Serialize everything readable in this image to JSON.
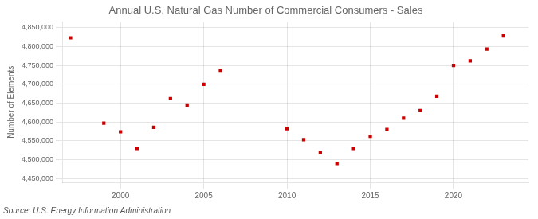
{
  "chart_data": {
    "type": "scatter",
    "title": "Annual U.S. Natural Gas Number of Commercial Consumers - Sales",
    "ylabel": "Number of Elements",
    "source": "Source: U.S. Energy Information Administration",
    "color": "#cc0000",
    "marker": "square",
    "grid": true,
    "x": [
      1997,
      1999,
      2000,
      2001,
      2002,
      2003,
      2004,
      2005,
      2006,
      2010,
      2011,
      2012,
      2013,
      2014,
      2015,
      2016,
      2017,
      2018,
      2019,
      2020,
      2021,
      2022,
      2023
    ],
    "values": [
      4823000,
      4597000,
      4574000,
      4530000,
      4586000,
      4662000,
      4645000,
      4700000,
      4735000,
      4582000,
      4553000,
      4519000,
      4490000,
      4530000,
      4562000,
      4580000,
      4610000,
      4630000,
      4668000,
      4750000,
      4762000,
      4793000,
      4828000
    ],
    "xlim": [
      1996.5,
      2024.5
    ],
    "xticks": [
      2000,
      2005,
      2010,
      2015,
      2020
    ],
    "ylim": [
      4440000,
      4865000
    ],
    "yticks": [
      {
        "value": 4450000,
        "label": "4,450,000"
      },
      {
        "value": 4500000,
        "label": "4,500,000"
      },
      {
        "value": 4550000,
        "label": "4,550,000"
      },
      {
        "value": 4600000,
        "label": "4,600,000"
      },
      {
        "value": 4650000,
        "label": "4,650,000"
      },
      {
        "value": 4700000,
        "label": "4,700,000"
      },
      {
        "value": 4750000,
        "label": "4,750,000"
      },
      {
        "value": 4800000,
        "label": "4,800,000"
      },
      {
        "value": 4850000,
        "label": "4,850,000"
      }
    ]
  }
}
